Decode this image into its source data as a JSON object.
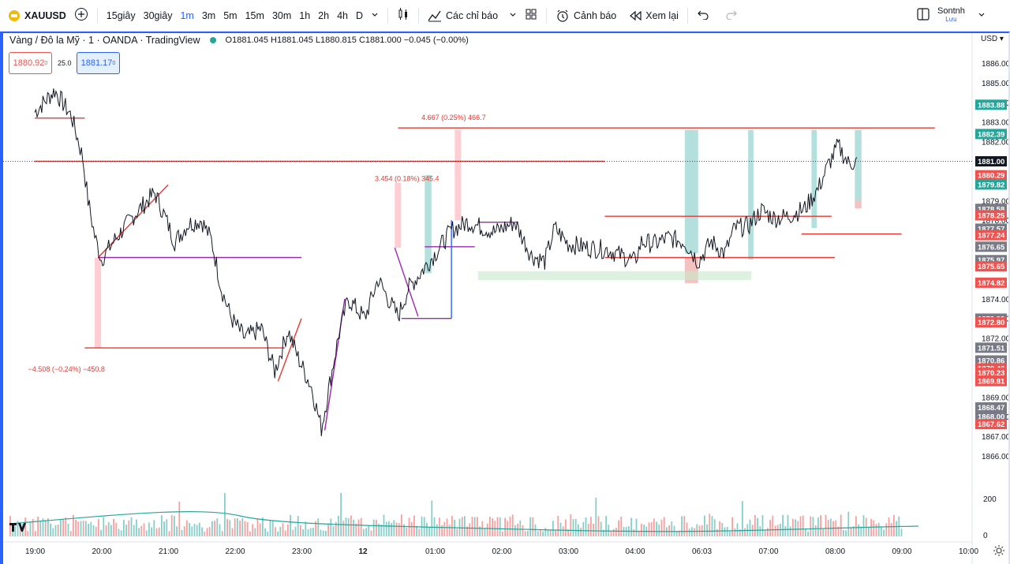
{
  "toolbar": {
    "symbol": "XAUUSD",
    "intervals": [
      "15giây",
      "30giây",
      "1m",
      "3m",
      "5m",
      "15m",
      "30m",
      "1h",
      "2h",
      "4h",
      "D"
    ],
    "active_interval": "1m",
    "indicators_label": "Các chỉ báo",
    "alert_label": "Cảnh báo",
    "replay_label": "Xem lại",
    "user_name": "Sontnh",
    "user_status": "Lưu"
  },
  "legend": {
    "title": "Vàng / Đô la Mỹ · 1 · OANDA · TradingView",
    "ohlc": "O1881.045  H1881.045  L1880.815  C1881.000  −0.045 (−0.00%)",
    "sell_price": "1880.92",
    "sell_price_sup": "0",
    "spread": "25.0",
    "buy_price": "1881.17",
    "buy_price_sup": "0"
  },
  "currency": "USD",
  "colors": {
    "accent": "#2962ff",
    "up": "#26a69a",
    "down": "#ef5350",
    "red_line": "#e53935",
    "purple": "#9c27b0",
    "dark_label": "#131722"
  },
  "chart_data": {
    "type": "candlestick",
    "symbol": "XAUUSD",
    "timeframe": "1",
    "ylim": [
      1865.5,
      1887.0
    ],
    "y_ticks": [
      "1886.00",
      "1885.00",
      "1884.00",
      "1883.00",
      "1882.00",
      "1879.00",
      "1878.00",
      "1874.00",
      "1873.00",
      "1872.00",
      "1869.00",
      "1868.00",
      "1867.00",
      "1866.00"
    ],
    "x_ticks": [
      "19:00",
      "20:00",
      "21:00",
      "22:00",
      "23:00",
      "12",
      "01:00",
      "02:00",
      "03:00",
      "04:00",
      "06:03",
      "07:00",
      "08:00",
      "09:00",
      "10:00"
    ],
    "price_path": [
      [
        0,
        1883.5
      ],
      [
        0.3,
        1884.6
      ],
      [
        0.55,
        1883.3
      ],
      [
        0.72,
        1881.2
      ],
      [
        0.8,
        1879.0
      ],
      [
        0.9,
        1877.2
      ],
      [
        1.0,
        1876.0
      ],
      [
        1.2,
        1877.0
      ],
      [
        1.5,
        1878.3
      ],
      [
        1.8,
        1879.4
      ],
      [
        1.95,
        1878.2
      ],
      [
        2.1,
        1876.9
      ],
      [
        2.3,
        1877.8
      ],
      [
        2.5,
        1878.0
      ],
      [
        2.65,
        1877.0
      ],
      [
        2.8,
        1874.5
      ],
      [
        2.95,
        1873.0
      ],
      [
        3.15,
        1872.0
      ],
      [
        3.4,
        1872.5
      ],
      [
        3.6,
        1870.3
      ],
      [
        3.8,
        1872.4
      ],
      [
        3.95,
        1871.0
      ],
      [
        4.15,
        1869.5
      ],
      [
        4.3,
        1867.4
      ],
      [
        4.55,
        1872.0
      ],
      [
        4.7,
        1874.0
      ],
      [
        4.95,
        1873.0
      ],
      [
        5.15,
        1875.0
      ],
      [
        5.3,
        1874.0
      ],
      [
        5.45,
        1873.1
      ],
      [
        5.6,
        1874.5
      ],
      [
        5.85,
        1875.6
      ],
      [
        6.05,
        1876.5
      ],
      [
        6.25,
        1877.5
      ],
      [
        6.5,
        1877.9
      ],
      [
        6.9,
        1877.4
      ],
      [
        7.2,
        1877.9
      ],
      [
        7.45,
        1876.2
      ],
      [
        7.65,
        1875.9
      ],
      [
        7.8,
        1877.6
      ],
      [
        8.0,
        1876.8
      ],
      [
        8.3,
        1876.6
      ],
      [
        8.6,
        1876.5
      ],
      [
        8.8,
        1876.2
      ],
      [
        9.0,
        1875.9
      ],
      [
        9.1,
        1876.9
      ],
      [
        9.3,
        1876.8
      ],
      [
        9.5,
        1877.1
      ],
      [
        9.75,
        1876.9
      ],
      [
        9.95,
        1875.9
      ],
      [
        10.15,
        1876.9
      ],
      [
        10.35,
        1876.3
      ],
      [
        10.5,
        1877.6
      ],
      [
        10.7,
        1877.7
      ],
      [
        10.9,
        1878.5
      ],
      [
        11.1,
        1878.1
      ],
      [
        11.3,
        1878.2
      ],
      [
        11.55,
        1878.6
      ],
      [
        11.75,
        1879.6
      ],
      [
        11.9,
        1880.8
      ],
      [
        12.05,
        1881.8
      ],
      [
        12.2,
        1880.9
      ],
      [
        12.35,
        1881.0
      ]
    ],
    "horizontal_levels": [
      {
        "price": 1883.2,
        "from": 0,
        "to": 0.75,
        "color": "red"
      },
      {
        "price": 1881.0,
        "from": 0,
        "to": 8.55,
        "color": "red"
      },
      {
        "price": 1882.7,
        "from": 5.45,
        "to": 13.5,
        "color": "red"
      },
      {
        "price": 1878.2,
        "from": 8.55,
        "to": 11.95,
        "color": "red"
      },
      {
        "price": 1876.1,
        "from": 8.55,
        "to": 12.0,
        "color": "red"
      },
      {
        "price": 1877.3,
        "from": 11.5,
        "to": 13.0,
        "color": "red"
      },
      {
        "price": 1871.5,
        "from": 0.75,
        "to": 3.75,
        "color": "red"
      },
      {
        "price": 1876.1,
        "from": 0.95,
        "to": 4.0,
        "color": "purple"
      },
      {
        "price": 1876.65,
        "from": 5.85,
        "to": 6.6,
        "color": "purple"
      },
      {
        "price": 1873.0,
        "from": 5.5,
        "to": 6.25,
        "color": "purple"
      },
      {
        "price": 1877.9,
        "from": 6.65,
        "to": 7.25,
        "color": "purple"
      }
    ],
    "measurements": [
      {
        "label": "−4.508 (−0.24%) −450.8",
        "kind": "down"
      },
      {
        "label": "3.454 (0.18%) 345.4",
        "kind": "up"
      },
      {
        "label": "4.667 (0.25%) 466.7",
        "kind": "up"
      }
    ],
    "price_labels": [
      {
        "text": "1883.88",
        "bg": "#26a69a"
      },
      {
        "text": "1882.39",
        "bg": "#26a69a"
      },
      {
        "text": "1881.00",
        "bg": "#131722"
      },
      {
        "text": "1880.29",
        "bg": "#ef5350"
      },
      {
        "text": "1879.82",
        "bg": "#26a69a"
      },
      {
        "text": "1878.58",
        "bg": "#787b86"
      },
      {
        "text": "1878.25",
        "bg": "#ef5350"
      },
      {
        "text": "1877.57",
        "bg": "#787b86"
      },
      {
        "text": "1877.24",
        "bg": "#ef5350"
      },
      {
        "text": "1876.65",
        "bg": "#787b86"
      },
      {
        "text": "1875.97",
        "bg": "#787b86"
      },
      {
        "text": "1875.65",
        "bg": "#ef5350"
      },
      {
        "text": "1874.82",
        "bg": "#ef5350"
      },
      {
        "text": "1872.99",
        "bg": "#787b86"
      },
      {
        "text": "1872.80",
        "bg": "#ef5350"
      },
      {
        "text": "1871.51",
        "bg": "#787b86"
      },
      {
        "text": "1870.86",
        "bg": "#787b86"
      },
      {
        "text": "1870.46",
        "bg": "#ef5350"
      },
      {
        "text": "1870.23",
        "bg": "#ef5350"
      },
      {
        "text": "1869.81",
        "bg": "#ef5350"
      },
      {
        "text": "1868.47",
        "bg": "#787b86"
      },
      {
        "text": "1868.00",
        "bg": "#787b86"
      },
      {
        "text": "1867.62",
        "bg": "#ef5350"
      }
    ],
    "volume_ticks": [
      "200",
      "0"
    ]
  }
}
